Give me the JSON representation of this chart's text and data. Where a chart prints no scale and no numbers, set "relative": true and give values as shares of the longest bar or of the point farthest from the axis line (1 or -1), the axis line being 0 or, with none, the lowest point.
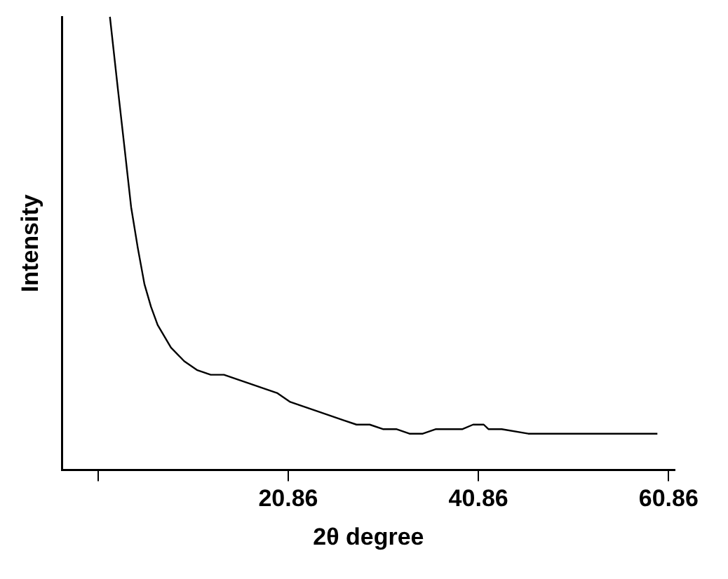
{
  "chart_data": {
    "type": "line",
    "xlabel": "2θ degree",
    "ylabel": "Intensity",
    "relative": true,
    "xlim": [
      -2.9,
      61.5
    ],
    "xticks": [
      {
        "value": 0.86,
        "label": null
      },
      20.86,
      40.86,
      60.86
    ],
    "grid": false,
    "legend": false,
    "marker": "none",
    "line_style": "solid",
    "series": [
      {
        "color": "#000000",
        "x": [
          2.11,
          2.95,
          3.65,
          4.34,
          5.04,
          5.74,
          6.43,
          7.13,
          8.53,
          9.92,
          11.31,
          12.71,
          14.1,
          15.49,
          16.89,
          18.28,
          19.68,
          21.07,
          22.46,
          23.86,
          25.25,
          26.64,
          28.04,
          29.43,
          30.82,
          32.22,
          33.61,
          35.01,
          36.4,
          37.79,
          39.19,
          40.3,
          40.86,
          41.42,
          41.91,
          43.31,
          46.1,
          48.94,
          51.73,
          54.52,
          57.31,
          59.68
        ],
        "values": [
          1,
          0.84,
          0.71,
          0.58,
          0.49,
          0.41,
          0.36,
          0.32,
          0.27,
          0.24,
          0.22,
          0.21,
          0.21,
          0.2,
          0.19,
          0.18,
          0.17,
          0.15,
          0.14,
          0.13,
          0.12,
          0.11,
          0.1,
          0.1,
          0.09,
          0.09,
          0.08,
          0.08,
          0.09,
          0.09,
          0.09,
          0.1,
          0.1,
          0.1,
          0.09,
          0.09,
          0.08,
          0.08,
          0.08,
          0.08,
          0.08,
          0.08
        ]
      }
    ]
  }
}
